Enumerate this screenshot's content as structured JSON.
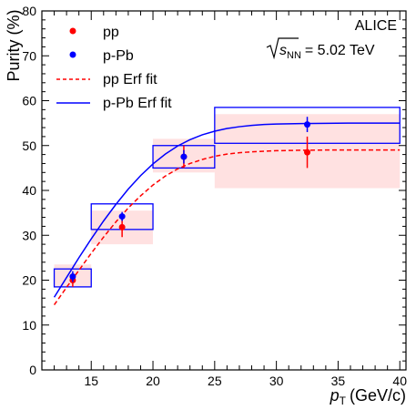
{
  "chart_data": {
    "type": "scatter",
    "xlabel": "p",
    "xlabel_sub": "T",
    "xlabel_unit": "(GeV/c)",
    "ylabel": "Purity (%)",
    "xlim": [
      11,
      40.5
    ],
    "ylim": [
      0,
      80
    ],
    "xticks": [
      15,
      20,
      25,
      30,
      35,
      40
    ],
    "yticks": [
      0,
      10,
      20,
      30,
      40,
      50,
      60,
      70,
      80
    ],
    "annotations": {
      "experiment": "ALICE",
      "energy_sqrt": "s",
      "energy_sub": "NN",
      "energy_value": "= 5.02 TeV"
    },
    "legend_position": "top-left",
    "series": [
      {
        "name": "pp",
        "kind": "points",
        "color": "#ff0000",
        "points": [
          {
            "x": 13.5,
            "y": 20.0,
            "yerr": 1.5,
            "xlow": 12,
            "xhigh": 15,
            "sys_low": 18.5,
            "sys_high": 23.5
          },
          {
            "x": 17.5,
            "y": 31.8,
            "yerr": 2.2,
            "xlow": 15,
            "xhigh": 20,
            "sys_low": 28.0,
            "sys_high": 35.5
          },
          {
            "x": 22.5,
            "y": 47.5,
            "yerr": 2.5,
            "xlow": 20,
            "xhigh": 25,
            "sys_low": 44.0,
            "sys_high": 51.5
          },
          {
            "x": 32.5,
            "y": 48.5,
            "yerr": 3.5,
            "xlow": 25,
            "xhigh": 40,
            "sys_low": 40.5,
            "sys_high": 57.0
          }
        ]
      },
      {
        "name": "p-Pb",
        "kind": "points",
        "color": "#0000ff",
        "points": [
          {
            "x": 13.5,
            "y": 20.8,
            "yerr": 1.2,
            "xlow": 12,
            "xhigh": 15,
            "sys_low": 18.5,
            "sys_high": 22.5
          },
          {
            "x": 17.5,
            "y": 34.2,
            "yerr": 1.0,
            "xlow": 15,
            "xhigh": 20,
            "sys_low": 31.3,
            "sys_high": 37.0
          },
          {
            "x": 22.5,
            "y": 47.5,
            "yerr": 1.5,
            "xlow": 20,
            "xhigh": 25,
            "sys_low": 45.0,
            "sys_high": 50.0
          },
          {
            "x": 32.5,
            "y": 54.7,
            "yerr": 1.7,
            "xlow": 25,
            "xhigh": 40,
            "sys_low": 50.5,
            "sys_high": 58.5
          }
        ]
      },
      {
        "name": "pp Erf fit",
        "kind": "line",
        "style": "dashed",
        "color": "#ff0000",
        "x": [
          12,
          13,
          14,
          15,
          16,
          17,
          18,
          19,
          20,
          21,
          22,
          23,
          24,
          25,
          26,
          27,
          28,
          30,
          32,
          34,
          36,
          38,
          40
        ],
        "y": [
          14.5,
          18.4,
          22.2,
          26.0,
          29.6,
          33.0,
          36.1,
          38.8,
          41.2,
          43.2,
          44.8,
          46.0,
          46.9,
          47.6,
          48.1,
          48.4,
          48.6,
          48.85,
          48.95,
          49.0,
          49.0,
          49.0,
          49.0
        ]
      },
      {
        "name": "p-Pb Erf fit",
        "kind": "line",
        "style": "solid",
        "color": "#0000ff",
        "x": [
          12,
          13,
          14,
          15,
          16,
          17,
          18,
          19,
          20,
          21,
          22,
          23,
          24,
          25,
          26,
          27,
          28,
          29,
          30,
          32,
          34,
          36,
          38,
          40
        ],
        "y": [
          16.2,
          20.6,
          25.0,
          29.2,
          33.2,
          36.9,
          40.3,
          43.3,
          45.9,
          48.1,
          49.9,
          51.3,
          52.4,
          53.2,
          53.8,
          54.2,
          54.5,
          54.7,
          54.8,
          54.9,
          54.95,
          55.0,
          55.0,
          55.0
        ]
      }
    ]
  }
}
